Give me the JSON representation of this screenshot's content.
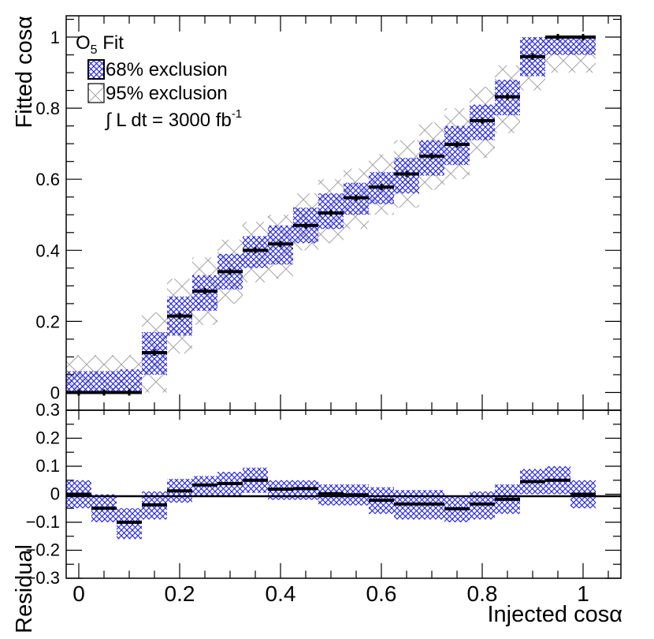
{
  "colors": {
    "band68": "#1a1aee",
    "band95": "#a8a8a8",
    "marker": "#000000",
    "zero_line": "#000000"
  },
  "chart_data": [
    {
      "type": "scatter",
      "panel": "main",
      "xlabel": "Injected cosα",
      "ylabel": "Fitted cosα",
      "xlim": [
        -0.025,
        1.075
      ],
      "ylim": [
        -0.05,
        1.06
      ],
      "yticks": [
        0,
        0.2,
        0.4,
        0.6,
        0.8,
        1
      ],
      "ytick_labels": [
        "0",
        "0.2",
        "0.4",
        "0.6",
        "0.8",
        "1"
      ],
      "grid": false,
      "legend": {
        "position": "top-left",
        "title": "O",
        "title_sub": "5",
        "title_rest": " Fit",
        "entries": [
          "68% exclusion",
          "95% exclusion"
        ],
        "luminosity": "∫ L dt = 3000 fb",
        "luminosity_sup": "-1"
      },
      "x": [
        0,
        0.05,
        0.1,
        0.15,
        0.2,
        0.25,
        0.3,
        0.35,
        0.4,
        0.45,
        0.5,
        0.55,
        0.6,
        0.65,
        0.7,
        0.75,
        0.8,
        0.85,
        0.9,
        0.95,
        1.0
      ],
      "bin_width": 0.05,
      "fitted": [
        0.0,
        0.0,
        0.0,
        0.112,
        0.215,
        0.285,
        0.34,
        0.4,
        0.418,
        0.47,
        0.505,
        0.548,
        0.578,
        0.615,
        0.665,
        0.698,
        0.765,
        0.832,
        0.945,
        1.0,
        1.0
      ],
      "band68_low": [
        0.0,
        0.0,
        0.0,
        0.05,
        0.16,
        0.23,
        0.29,
        0.35,
        0.36,
        0.42,
        0.46,
        0.5,
        0.53,
        0.56,
        0.61,
        0.64,
        0.71,
        0.78,
        0.89,
        0.95,
        0.95
      ],
      "band68_high": [
        0.06,
        0.06,
        0.065,
        0.17,
        0.27,
        0.33,
        0.39,
        0.44,
        0.47,
        0.52,
        0.56,
        0.59,
        0.62,
        0.66,
        0.71,
        0.75,
        0.81,
        0.88,
        1.0,
        1.0,
        1.0
      ],
      "band95_low": [
        0.0,
        0.0,
        0.0,
        0.0,
        0.11,
        0.19,
        0.25,
        0.31,
        0.32,
        0.4,
        0.42,
        0.46,
        0.5,
        0.52,
        0.57,
        0.6,
        0.66,
        0.73,
        0.85,
        0.9,
        0.9
      ],
      "band95_high": [
        0.105,
        0.105,
        0.105,
        0.225,
        0.32,
        0.38,
        0.43,
        0.48,
        0.5,
        0.56,
        0.6,
        0.63,
        0.67,
        0.71,
        0.76,
        0.8,
        0.86,
        0.92,
        1.0,
        1.0,
        1.0
      ]
    },
    {
      "type": "scatter",
      "panel": "residual",
      "xlabel": "Injected cosα",
      "ylabel": "Residual",
      "xlim": [
        -0.025,
        1.075
      ],
      "ylim": [
        -0.3,
        0.3
      ],
      "yticks": [
        -0.3,
        -0.2,
        -0.1,
        0,
        0.1,
        0.2,
        0.3
      ],
      "ytick_labels": [
        "−0.3",
        "−0.2",
        "−0.1",
        "0",
        "0.1",
        "0.2",
        "0.3"
      ],
      "xticks": [
        0,
        0.2,
        0.4,
        0.6,
        0.8,
        1
      ],
      "xtick_labels": [
        "0",
        "0.2",
        "0.4",
        "0.6",
        "0.8",
        "1"
      ],
      "grid": false,
      "x": [
        0,
        0.05,
        0.1,
        0.15,
        0.2,
        0.25,
        0.3,
        0.35,
        0.4,
        0.45,
        0.5,
        0.55,
        0.6,
        0.65,
        0.7,
        0.75,
        0.8,
        0.85,
        0.9,
        0.95,
        1.0
      ],
      "bin_width": 0.05,
      "residual": [
        0.0,
        -0.05,
        -0.1,
        -0.038,
        0.012,
        0.033,
        0.038,
        0.05,
        0.018,
        0.02,
        0.002,
        -0.002,
        -0.022,
        -0.035,
        -0.035,
        -0.052,
        -0.035,
        -0.018,
        0.045,
        0.05,
        0.0
      ],
      "band68_low": [
        -0.05,
        -0.1,
        -0.16,
        -0.09,
        -0.03,
        -0.01,
        -0.01,
        0.005,
        -0.02,
        -0.02,
        -0.04,
        -0.04,
        -0.07,
        -0.09,
        -0.09,
        -0.1,
        -0.09,
        -0.07,
        0.0,
        0.0,
        -0.05
      ],
      "band68_high": [
        0.05,
        0.0,
        -0.05,
        0.01,
        0.055,
        0.065,
        0.08,
        0.095,
        0.05,
        0.05,
        0.035,
        0.035,
        0.025,
        0.015,
        0.015,
        -0.005,
        0.01,
        0.035,
        0.09,
        0.1,
        0.05
      ]
    }
  ]
}
